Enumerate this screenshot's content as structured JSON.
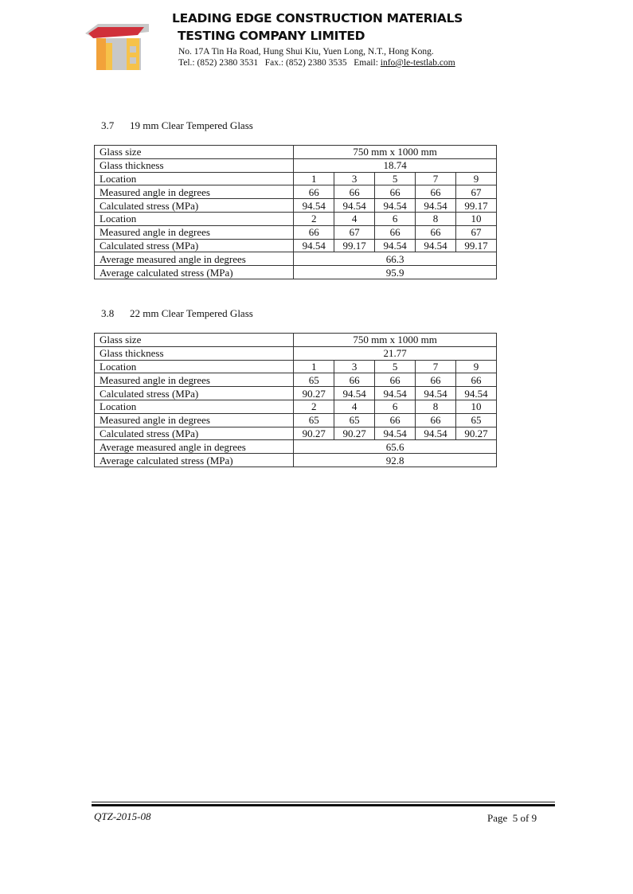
{
  "header": {
    "company_line1": "LEADING EDGE CONSTRUCTION MATERIALS",
    "company_line2": "TESTING COMPANY LIMITED",
    "address": "No. 17A Tin Ha Road, Hung Shui Kiu, Yuen Long, N.T., Hong Kong.",
    "contact": "Tel.: (852) 2380 3531   Fax.: (852) 2380 3535   Email: ",
    "email": "info@le-testlab.com"
  },
  "sections": [
    {
      "number": "3.7",
      "title": "19 mm Clear Tempered Glass",
      "glass_size_label": "Glass size",
      "glass_size": "750 mm x 1000 mm",
      "thickness_label": "Glass thickness",
      "thickness": "18.74",
      "location_label": "Location",
      "angle_label": "Measured angle in degrees",
      "stress_label": "Calculated stress (MPa)",
      "group1": {
        "locations": [
          "1",
          "3",
          "5",
          "7",
          "9"
        ],
        "angles": [
          "66",
          "66",
          "66",
          "66",
          "67"
        ],
        "stress": [
          "94.54",
          "94.54",
          "94.54",
          "94.54",
          "99.17"
        ]
      },
      "group2": {
        "locations": [
          "2",
          "4",
          "6",
          "8",
          "10"
        ],
        "angles": [
          "66",
          "67",
          "66",
          "66",
          "67"
        ],
        "stress": [
          "94.54",
          "99.17",
          "94.54",
          "94.54",
          "99.17"
        ]
      },
      "avg_angle_label": "Average measured angle in degrees",
      "avg_angle": "66.3",
      "avg_stress_label": "Average calculated stress (MPa)",
      "avg_stress": "95.9"
    },
    {
      "number": "3.8",
      "title": "22 mm Clear Tempered Glass",
      "glass_size_label": "Glass size",
      "glass_size": "750 mm x 1000 mm",
      "thickness_label": "Glass thickness",
      "thickness": "21.77",
      "location_label": "Location",
      "angle_label": "Measured angle in degrees",
      "stress_label": "Calculated stress (MPa)",
      "group1": {
        "locations": [
          "1",
          "3",
          "5",
          "7",
          "9"
        ],
        "angles": [
          "65",
          "66",
          "66",
          "66",
          "66"
        ],
        "stress": [
          "90.27",
          "94.54",
          "94.54",
          "94.54",
          "94.54"
        ]
      },
      "group2": {
        "locations": [
          "2",
          "4",
          "6",
          "8",
          "10"
        ],
        "angles": [
          "65",
          "65",
          "66",
          "66",
          "65"
        ],
        "stress": [
          "90.27",
          "90.27",
          "94.54",
          "94.54",
          "90.27"
        ]
      },
      "avg_angle_label": "Average measured angle in degrees",
      "avg_angle": "65.6",
      "avg_stress_label": "Average calculated stress (MPa)",
      "avg_stress": "92.8"
    }
  ],
  "footer": {
    "doc_code": "QTZ-2015-08",
    "page": "Page  5 of 9"
  }
}
